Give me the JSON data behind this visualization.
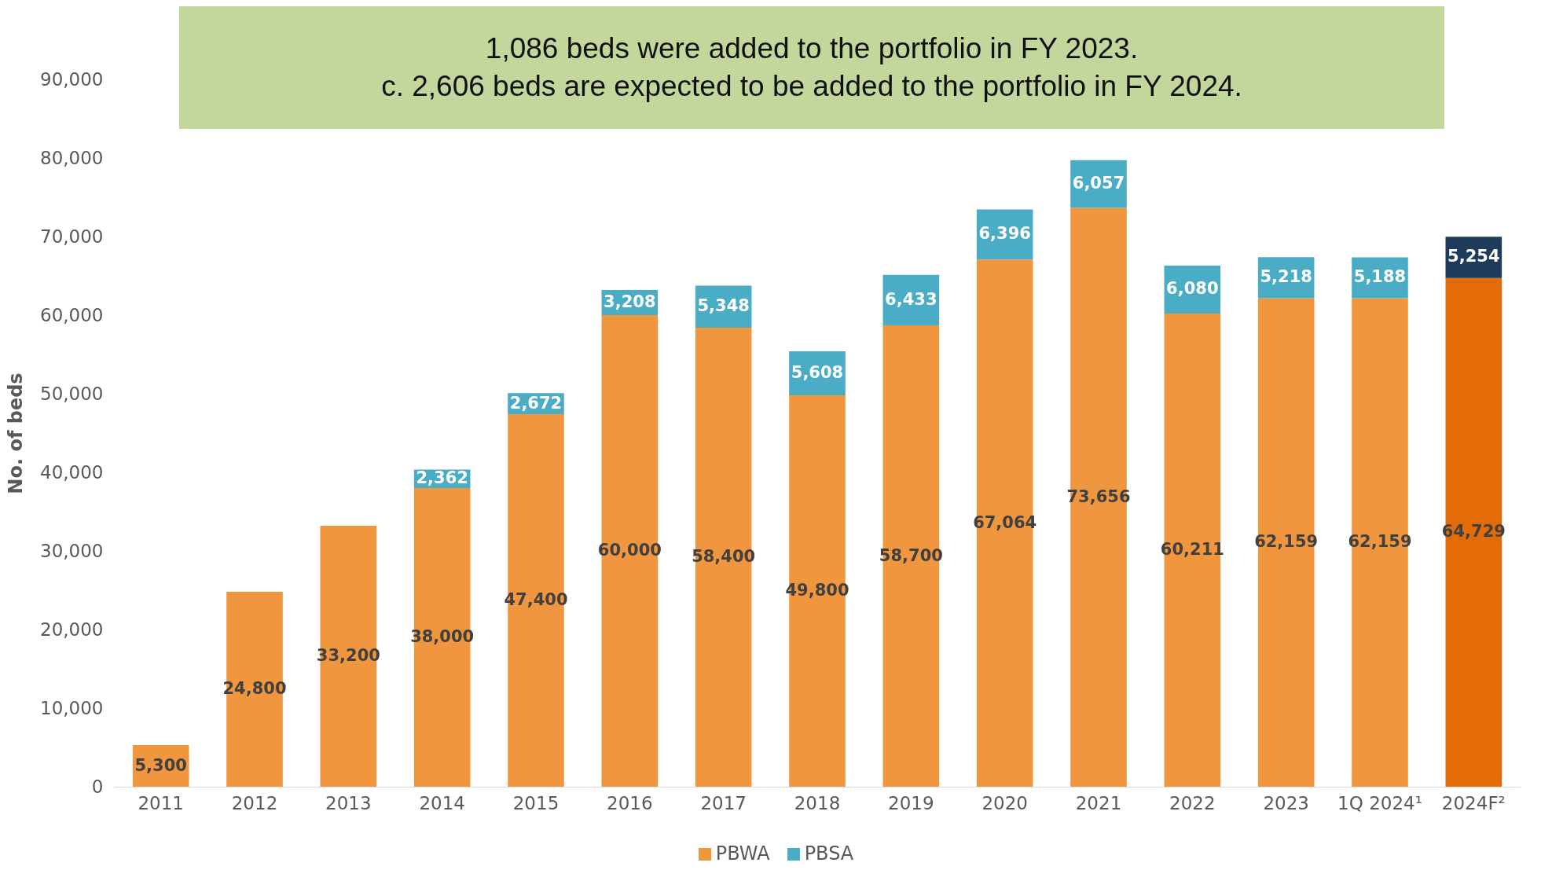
{
  "chart_data": {
    "type": "bar",
    "title": "1,086 beds were added to the portfolio in FY 2023.",
    "subtitle": "c. 2,606 beds are expected to be added to the portfolio in FY 2024.",
    "categories": [
      "2011",
      "2012",
      "2013",
      "2014",
      "2015",
      "2016",
      "2017",
      "2018",
      "2019",
      "2020",
      "2021",
      "2022",
      "2023",
      "1Q 2024¹",
      "2024F²"
    ],
    "stacked": true,
    "ylabel": "No. of beds",
    "ylim": [
      0,
      90000
    ],
    "yticks": [
      {
        "value": 0,
        "label": "0"
      },
      {
        "value": 10000,
        "label": "10,000"
      },
      {
        "value": 20000,
        "label": "20,000"
      },
      {
        "value": 30000,
        "label": "30,000"
      },
      {
        "value": 40000,
        "label": "40,000"
      },
      {
        "value": 50000,
        "label": "50,000"
      },
      {
        "value": 60000,
        "label": "60,000"
      },
      {
        "value": 70000,
        "label": "70,000"
      },
      {
        "value": 80000,
        "label": "80,000"
      },
      {
        "value": 90000,
        "label": "90,000"
      }
    ],
    "grid": false,
    "legend": "bottom",
    "series": [
      {
        "name": "PBWA",
        "color": "#f0963f",
        "colors": [
          "#f0963f",
          "#f0963f",
          "#f0963f",
          "#f0963f",
          "#f0963f",
          "#f0963f",
          "#f0963f",
          "#f0963f",
          "#f0963f",
          "#f0963f",
          "#f0963f",
          "#f0963f",
          "#f0963f",
          "#f0963f",
          "#e36c09"
        ],
        "values": [
          5300,
          24800,
          33200,
          38000,
          47400,
          60000,
          58400,
          49800,
          58700,
          67064,
          73656,
          60211,
          62159,
          62159,
          64729
        ],
        "value_labels": [
          "5,300",
          "24,800",
          "33,200",
          "38,000",
          "47,400",
          "60,000",
          "58,400",
          "49,800",
          "58,700",
          "67,064",
          "73,656",
          "60,211",
          "62,159",
          "62,159",
          "64,729"
        ]
      },
      {
        "name": "PBSA",
        "color": "#4bacc6",
        "colors": [
          null,
          null,
          null,
          "#4bacc6",
          "#4bacc6",
          "#4bacc6",
          "#4bacc6",
          "#4bacc6",
          "#4bacc6",
          "#4bacc6",
          "#4bacc6",
          "#4bacc6",
          "#4bacc6",
          "#4bacc6",
          "#1f3b5c"
        ],
        "values": [
          null,
          null,
          null,
          2362,
          2672,
          3208,
          5348,
          5608,
          6433,
          6396,
          6057,
          6080,
          5218,
          5188,
          5254
        ],
        "value_labels": [
          null,
          null,
          null,
          "2,362",
          "2,672",
          "3,208",
          "5,348",
          "5,608",
          "6,433",
          "6,396",
          "6,057",
          "6,080",
          "5,218",
          "5,188",
          "5,254"
        ]
      }
    ]
  }
}
